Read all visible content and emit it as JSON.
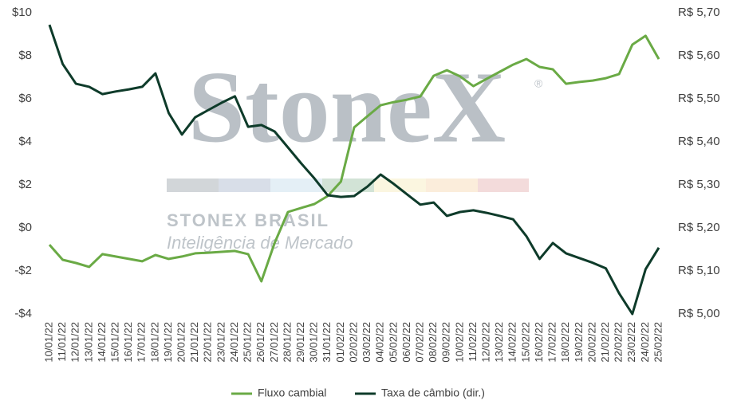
{
  "chart_data": {
    "type": "line",
    "categories": [
      "10/01/22",
      "11/01/22",
      "12/01/22",
      "13/01/22",
      "14/01/22",
      "15/01/22",
      "16/01/22",
      "17/01/22",
      "18/01/22",
      "19/01/22",
      "20/01/22",
      "21/01/22",
      "22/01/22",
      "23/01/22",
      "24/01/22",
      "25/01/22",
      "26/01/22",
      "27/01/22",
      "28/01/22",
      "29/01/22",
      "30/01/22",
      "31/01/22",
      "01/02/22",
      "02/02/22",
      "03/02/22",
      "04/02/22",
      "05/02/22",
      "06/02/22",
      "07/02/22",
      "08/02/22",
      "09/02/22",
      "10/02/22",
      "11/02/22",
      "12/02/22",
      "13/02/22",
      "14/02/22",
      "15/02/22",
      "16/02/22",
      "17/02/22",
      "18/02/22",
      "19/02/22",
      "20/02/22",
      "21/02/22",
      "22/02/22",
      "23/02/22",
      "24/02/22",
      "25/02/22"
    ],
    "series": [
      {
        "name": "Fluxo cambial",
        "color": "#6aaa45",
        "values": [
          -0.78,
          -1.48,
          -1.63,
          -1.81,
          -1.22,
          -1.33,
          -1.44,
          -1.55,
          -1.26,
          -1.44,
          -1.33,
          -1.18,
          -1.15,
          -1.11,
          -1.07,
          -1.22,
          -2.48,
          -0.7,
          0.74,
          0.93,
          1.11,
          1.48,
          2.15,
          4.67,
          5.19,
          5.7,
          5.85,
          5.96,
          6.11,
          7.07,
          7.33,
          7.04,
          6.59,
          6.93,
          7.26,
          7.59,
          7.85,
          7.48,
          7.37,
          6.7,
          6.78,
          6.85,
          6.96,
          7.15,
          8.52,
          8.93,
          7.85
        ]
      },
      {
        "name": "Taxa de câmbio (dir.)",
        "color": "#0e3b2a",
        "axis": "y2",
        "values": [
          5.672,
          5.581,
          5.535,
          5.528,
          5.511,
          5.517,
          5.522,
          5.528,
          5.559,
          5.467,
          5.417,
          5.457,
          5.474,
          5.491,
          5.506,
          5.435,
          5.439,
          5.424,
          5.387,
          5.35,
          5.315,
          5.276,
          5.272,
          5.274,
          5.296,
          5.324,
          5.302,
          5.278,
          5.254,
          5.259,
          5.228,
          5.237,
          5.241,
          5.235,
          5.228,
          5.22,
          5.181,
          5.128,
          5.165,
          5.141,
          5.13,
          5.119,
          5.106,
          5.048,
          5.0,
          5.104,
          5.154
        ]
      }
    ],
    "ylim": [
      -4,
      10
    ],
    "yticks": [
      {
        "value": 10,
        "label": "$10"
      },
      {
        "value": 8,
        "label": "$8"
      },
      {
        "value": 6,
        "label": "$6"
      },
      {
        "value": 4,
        "label": "$4"
      },
      {
        "value": 2,
        "label": "$2"
      },
      {
        "value": 0,
        "label": "$0"
      },
      {
        "value": -2,
        "label": "-$2"
      },
      {
        "value": -4,
        "label": "-$4"
      }
    ],
    "y2lim": [
      5.0,
      5.7
    ],
    "y2ticks": [
      {
        "value": 5.7,
        "label": "R$ 5,70"
      },
      {
        "value": 5.6,
        "label": "R$ 5,60"
      },
      {
        "value": 5.5,
        "label": "R$ 5,50"
      },
      {
        "value": 5.4,
        "label": "R$ 5,40"
      },
      {
        "value": 5.3,
        "label": "R$ 5,30"
      },
      {
        "value": 5.2,
        "label": "R$ 5,20"
      },
      {
        "value": 5.1,
        "label": "R$ 5,10"
      },
      {
        "value": 5.0,
        "label": "R$ 5,00"
      }
    ],
    "grid": false,
    "legend": "bottom",
    "annotations": [
      "StoneX",
      "®",
      "STONEX BRASIL",
      "Inteligência de Mercado"
    ]
  }
}
